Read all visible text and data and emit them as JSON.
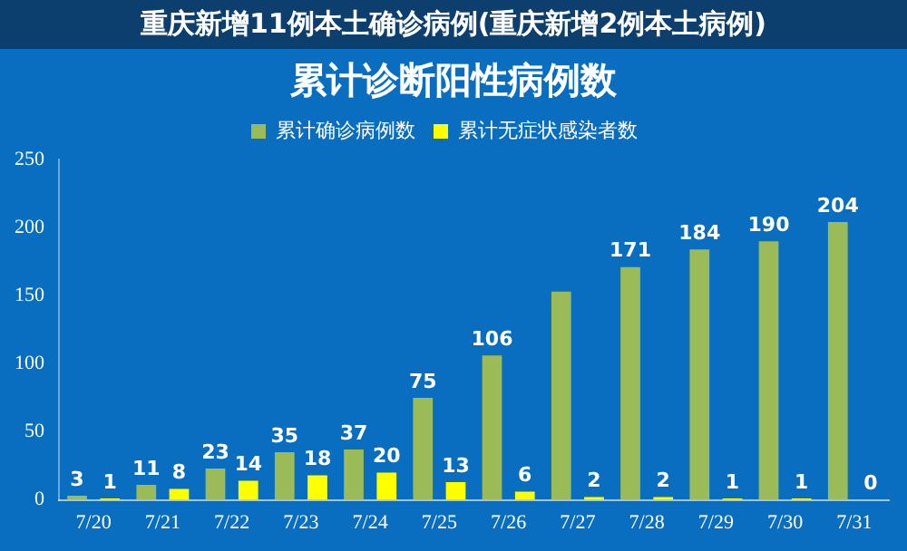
{
  "chart_data": {
    "type": "bar",
    "title": "累计诊断阳性病例数",
    "annotations": [
      "重庆新增11例本土确诊病例(重庆新增2例本土病例)"
    ],
    "categories": [
      "7/20",
      "7/21",
      "7/22",
      "7/23",
      "7/24",
      "7/25",
      "7/26",
      "7/27",
      "7/28",
      "7/29",
      "7/30",
      "7/31"
    ],
    "series": [
      {
        "name": "累计确诊病例数",
        "color": "#9bbb59",
        "values": [
          3,
          11,
          23,
          35,
          37,
          75,
          106,
          153,
          171,
          184,
          190,
          204
        ],
        "value_labels": [
          "3",
          "11",
          "23",
          "35",
          "37",
          "75",
          "106",
          null,
          "171",
          "184",
          "190",
          "204"
        ]
      },
      {
        "name": "累计无症状感染者数",
        "color": "#ffff00",
        "values": [
          1,
          8,
          14,
          18,
          20,
          13,
          6,
          2,
          2,
          1,
          1,
          0
        ],
        "value_labels": [
          "1",
          "8",
          "14",
          "18",
          "20",
          "13",
          "6",
          "2",
          "2",
          "1",
          "1",
          "0"
        ]
      }
    ],
    "ylim": [
      0,
      250
    ],
    "yticks": [
      0,
      50,
      100,
      150,
      200,
      250
    ],
    "grid": false,
    "legend": "top"
  }
}
